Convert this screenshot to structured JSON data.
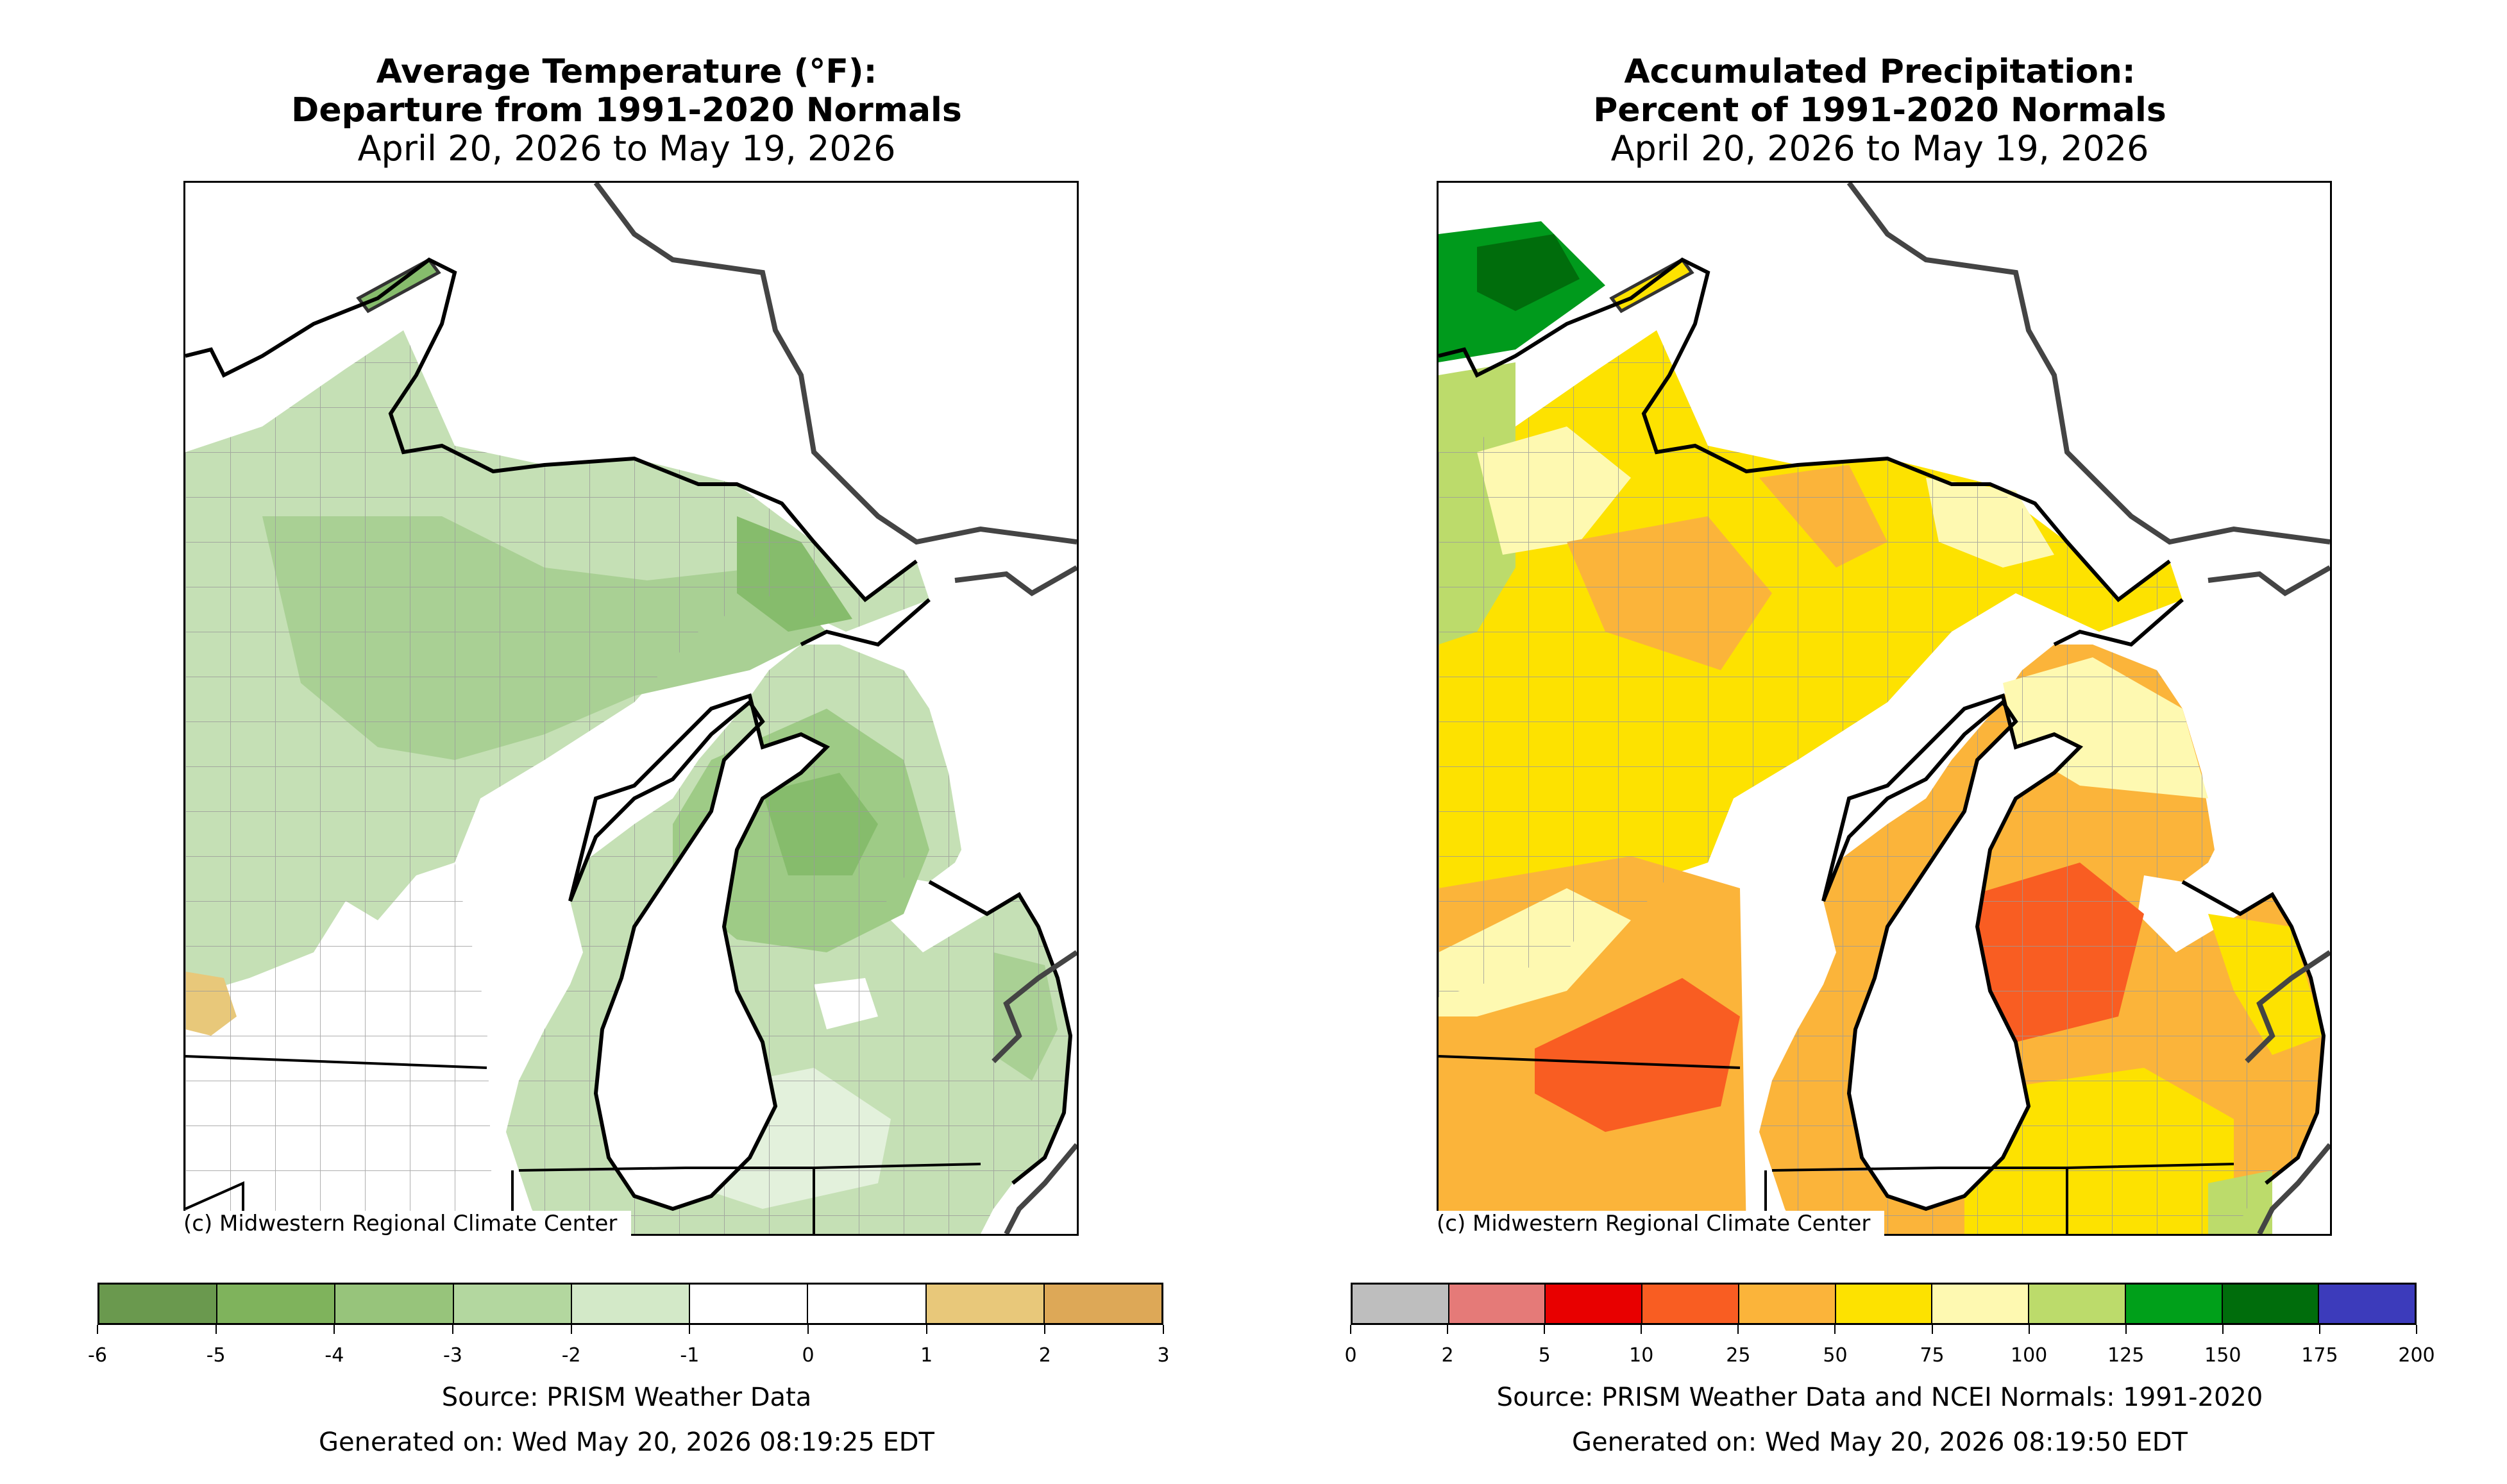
{
  "left_panel": {
    "title_line1": "Average Temperature (°F):",
    "title_line2": "Departure from 1991-2020 Normals",
    "date_range": "April 20, 2026 to May 19, 2026",
    "credit": "(c) Midwestern Regional Climate Center",
    "source": "Source: PRISM Weather Data",
    "generated": "Generated on: Wed May 20, 2026 08:19:25 EDT",
    "legend": {
      "ticks": [
        "-6",
        "-5",
        "-4",
        "-3",
        "-2",
        "-1",
        "0",
        "1",
        "2",
        "3"
      ],
      "colors": [
        "#6a994e",
        "#7fb35c",
        "#97c47b",
        "#b3d79f",
        "#d3e9c8",
        "#ffffff",
        "#ffffff",
        "#e8c87a",
        "#dda857"
      ]
    }
  },
  "right_panel": {
    "title_line1": "Accumulated Precipitation:",
    "title_line2": "Percent of 1991-2020 Normals",
    "date_range": "April 20, 2026 to May 19, 2026",
    "credit": "(c) Midwestern Regional Climate Center",
    "source": "Source: PRISM Weather Data and NCEI Normals: 1991-2020",
    "generated": "Generated on: Wed May 20, 2026 08:19:50 EDT",
    "legend": {
      "ticks": [
        "0",
        "2",
        "5",
        "10",
        "25",
        "50",
        "75",
        "100",
        "125",
        "150",
        "175",
        "200"
      ],
      "colors": [
        "#bebebe",
        "#e57a78",
        "#e80000",
        "#f95d22",
        "#fbb43a",
        "#fde200",
        "#fef9b1",
        "#bcdb6b",
        "#00a01a",
        "#006d0c",
        "#3c3bbb"
      ]
    }
  }
}
